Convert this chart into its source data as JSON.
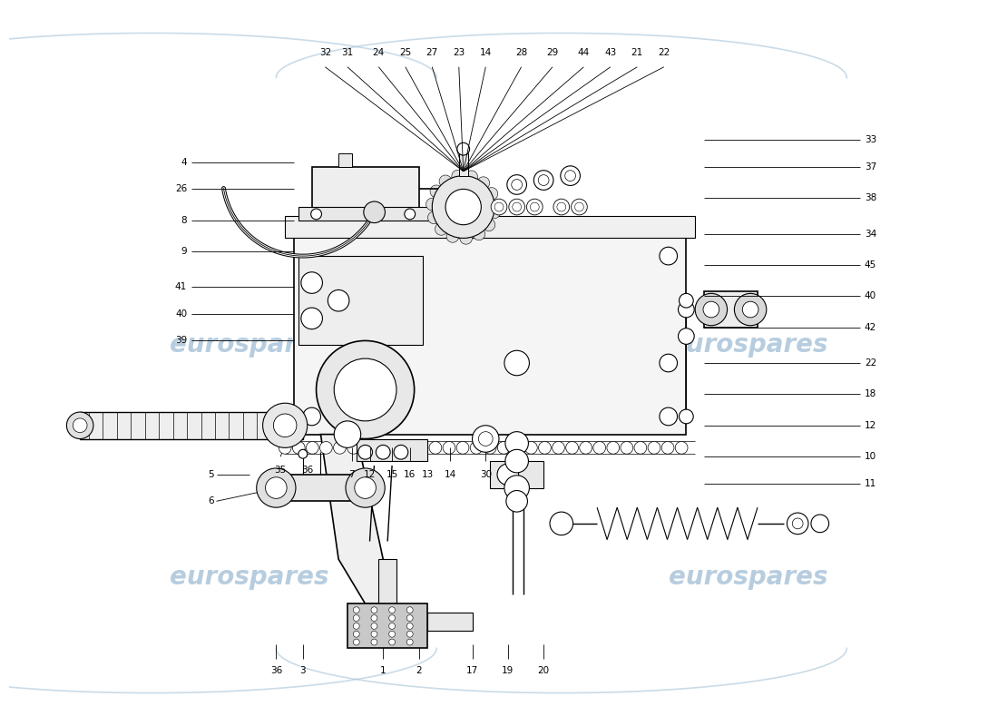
{
  "background_color": "#ffffff",
  "line_color": "#000000",
  "watermark_color": "#b0c8dc",
  "watermark_text": "eurospares",
  "fig_width": 11.0,
  "fig_height": 8.0,
  "dpi": 100
}
